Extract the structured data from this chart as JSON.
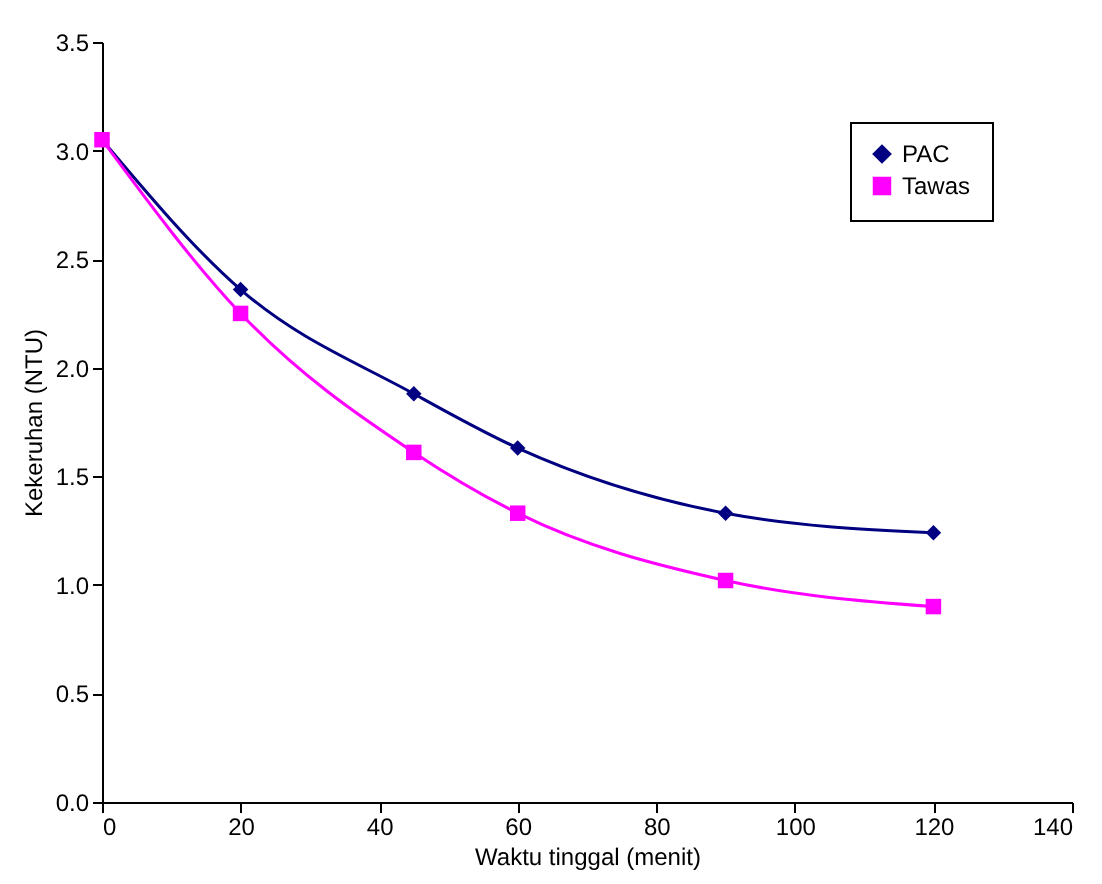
{
  "chart_data": {
    "type": "line",
    "xlabel": "Waktu tinggal (menit)",
    "ylabel": "Kekeruhan (NTU)",
    "x": [
      0,
      20,
      45,
      60,
      90,
      120
    ],
    "series": [
      {
        "name": "PAC",
        "color": "#000080",
        "marker": "diamond",
        "values": [
          3.05,
          2.36,
          1.88,
          1.63,
          1.33,
          1.24
        ]
      },
      {
        "name": "Tawas",
        "color": "#ff00ff",
        "marker": "square",
        "values": [
          3.05,
          2.25,
          1.61,
          1.33,
          1.02,
          0.9
        ]
      }
    ],
    "xlim": [
      0,
      140
    ],
    "xticks": [
      0,
      20,
      40,
      60,
      80,
      100,
      120,
      140
    ],
    "ylim": [
      0,
      3.5
    ],
    "yticks": [
      {
        "value": 0,
        "label": "0.0"
      },
      0.5,
      {
        "value": 1,
        "label": "1.0"
      },
      1.5,
      {
        "value": 2,
        "label": "2.0"
      },
      2.5,
      {
        "value": 3,
        "label": "3.0"
      },
      3.5
    ],
    "legend": "top right",
    "grid": false
  }
}
